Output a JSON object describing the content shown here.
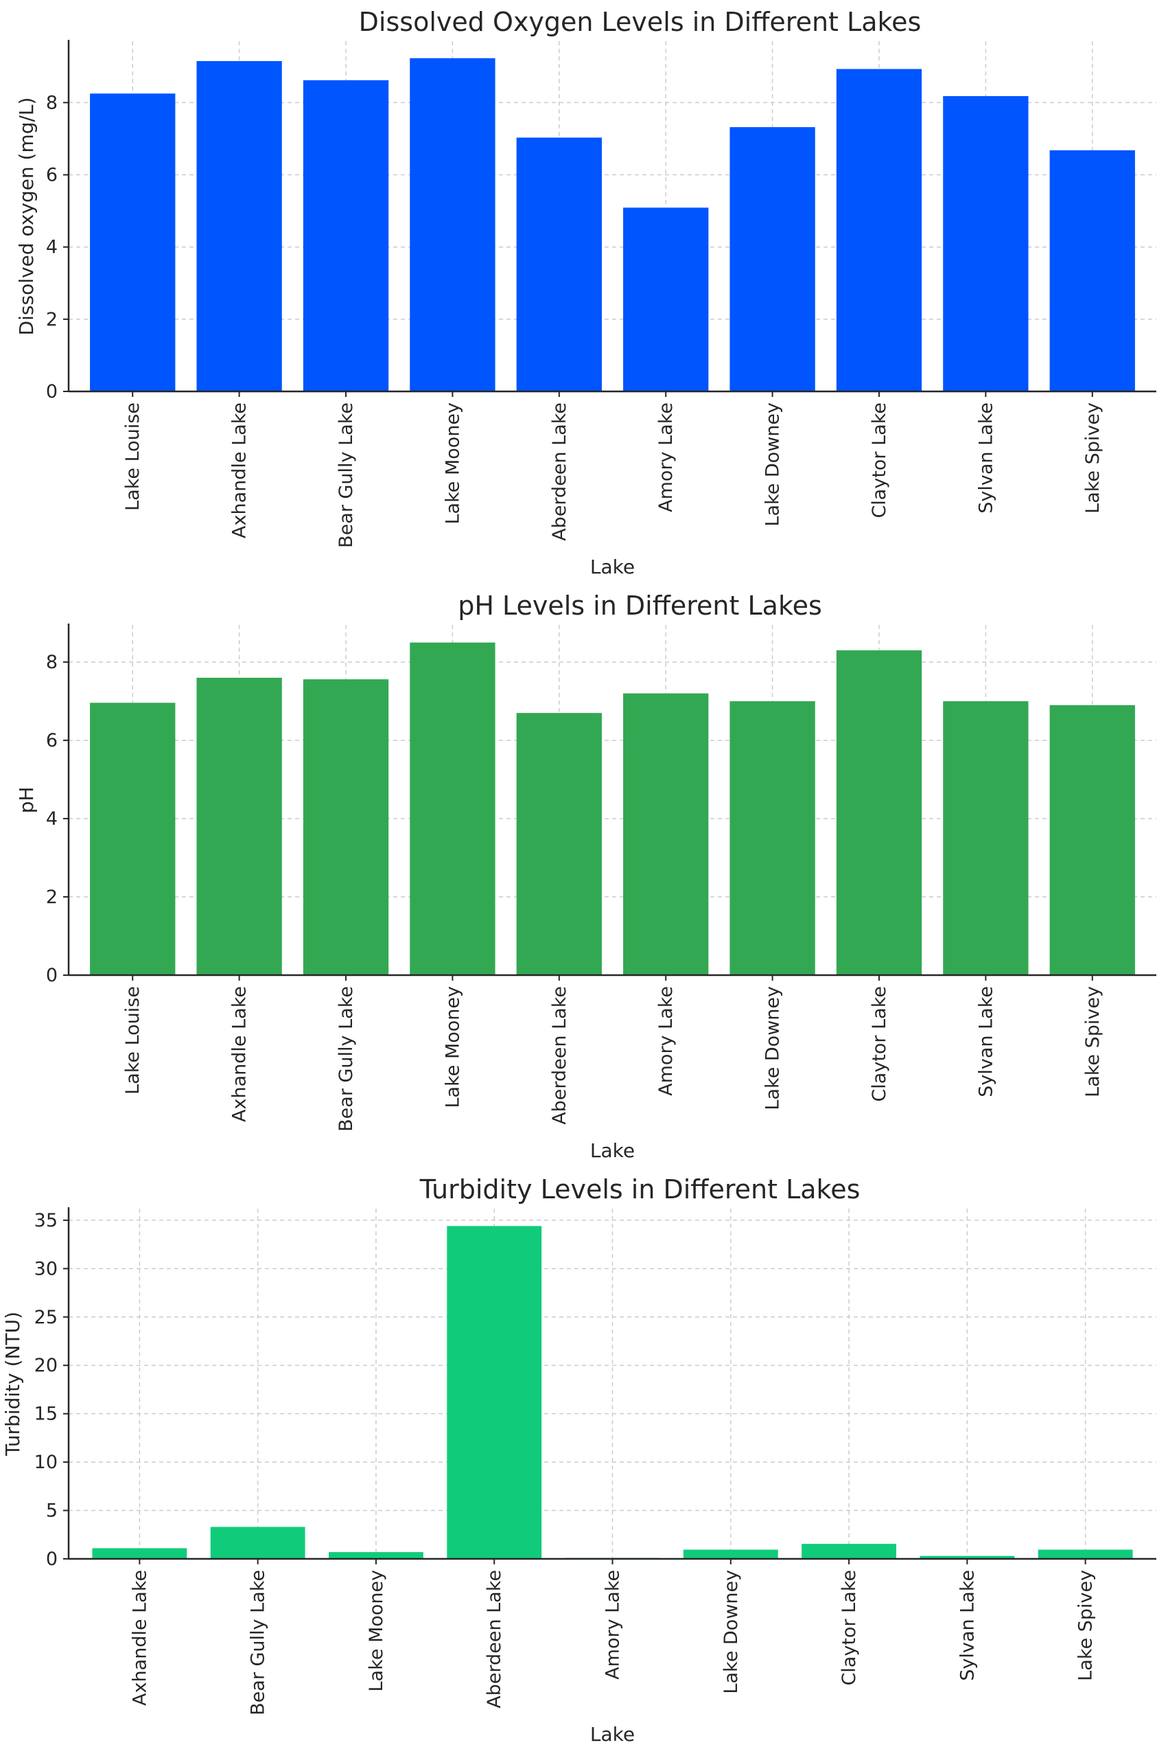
{
  "colors": {
    "oxygen": "#0055ff",
    "ph": "#33a853",
    "turbidity": "#10cc7a"
  },
  "chart_data": [
    {
      "type": "bar",
      "title": "Dissolved Oxygen Levels in Different Lakes",
      "xlabel": "Lake",
      "ylabel": "Dissolved oxygen (mg/L)",
      "categories": [
        "Lake Louise",
        "Axhandle Lake",
        "Bear Gully Lake",
        "Lake Mooney",
        "Aberdeen Lake",
        "Amory Lake",
        "Lake Downey",
        "Claytor Lake",
        "Sylvan Lake",
        "Lake Spivey"
      ],
      "values": [
        8.25,
        9.15,
        8.62,
        9.23,
        7.03,
        5.09,
        7.32,
        8.93,
        8.18,
        6.68
      ],
      "ylim": [
        0,
        9.7
      ],
      "yticks": [
        0,
        2,
        4,
        6,
        8
      ],
      "grid": true,
      "color_key": "oxygen"
    },
    {
      "type": "bar",
      "title": "pH Levels in Different Lakes",
      "xlabel": "Lake",
      "ylabel": "pH",
      "categories": [
        "Lake Louise",
        "Axhandle Lake",
        "Bear Gully Lake",
        "Lake Mooney",
        "Aberdeen Lake",
        "Amory Lake",
        "Lake Downey",
        "Claytor Lake",
        "Sylvan Lake",
        "Lake Spivey"
      ],
      "values": [
        6.96,
        7.6,
        7.56,
        8.5,
        6.7,
        7.2,
        7.0,
        8.3,
        7.0,
        6.9
      ],
      "ylim": [
        0,
        8.95
      ],
      "yticks": [
        0,
        2,
        4,
        6,
        8
      ],
      "grid": true,
      "color_key": "ph"
    },
    {
      "type": "bar",
      "title": "Turbidity Levels in Different Lakes",
      "xlabel": "Lake",
      "ylabel": "Turbidity (NTU)",
      "categories": [
        "Axhandle Lake",
        "Bear Gully Lake",
        "Lake Mooney",
        "Aberdeen Lake",
        "Amory Lake",
        "Lake Downey",
        "Claytor Lake",
        "Sylvan Lake",
        "Lake Spivey"
      ],
      "values": [
        1.1,
        3.3,
        0.7,
        34.4,
        0.1,
        0.95,
        1.55,
        0.3,
        0.95
      ],
      "ylim": [
        0,
        36.2
      ],
      "yticks": [
        0,
        5,
        10,
        15,
        20,
        25,
        30,
        35
      ],
      "grid": true,
      "color_key": "turbidity"
    }
  ]
}
